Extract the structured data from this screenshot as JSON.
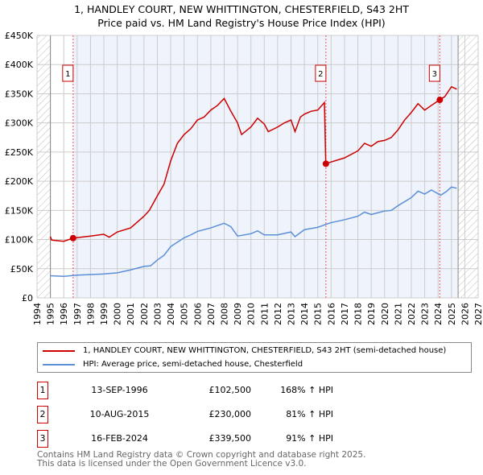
{
  "title": "1, HANDLEY COURT, NEW WHITTINGTON, CHESTERFIELD, S43 2HT",
  "subtitle": "Price paid vs. HM Land Registry's House Price Index (HPI)",
  "colors": {
    "property": "#cc0000",
    "hpi": "#5b8fd6",
    "shade": "#eef3fc"
  },
  "chart_data": {
    "type": "line",
    "xlim": [
      1994,
      2027
    ],
    "ylim": [
      0,
      450000
    ],
    "y_ticks": [
      0,
      50000,
      100000,
      150000,
      200000,
      250000,
      300000,
      350000,
      400000,
      450000
    ],
    "y_tick_labels": [
      "£0",
      "£50K",
      "£100K",
      "£150K",
      "£200K",
      "£250K",
      "£300K",
      "£350K",
      "£400K",
      "£450K"
    ],
    "x_ticks": [
      1994,
      1995,
      1996,
      1997,
      1998,
      1999,
      2000,
      2001,
      2002,
      2003,
      2004,
      2005,
      2006,
      2007,
      2008,
      2009,
      2010,
      2011,
      2012,
      2013,
      2014,
      2015,
      2016,
      2017,
      2018,
      2019,
      2020,
      2021,
      2022,
      2023,
      2024,
      2025,
      2026,
      2027
    ],
    "data_range": [
      1995,
      2025.5
    ],
    "series": [
      {
        "name": "1, HANDLEY COURT, NEW WHITTINGTON, CHESTERFIELD, S43 2HT (semi-detached house)",
        "color": "#cc0000",
        "x": [
          1995,
          1995.1,
          1996,
          1996.7,
          1998,
          1999,
          1999.4,
          2000,
          2001,
          2001.4,
          2002,
          2002.4,
          2003,
          2003.5,
          2004,
          2004.5,
          2005,
          2005.5,
          2006,
          2006.5,
          2007,
          2007.5,
          2008,
          2008.5,
          2009,
          2009.3,
          2010,
          2010.5,
          2011,
          2011.3,
          2012,
          2012.5,
          2013,
          2013.3,
          2013.7,
          2014,
          2014.5,
          2015,
          2015.5,
          2015.6,
          2016,
          2017,
          2018,
          2018.5,
          2019,
          2019.5,
          2020,
          2020.5,
          2021,
          2021.5,
          2022,
          2022.5,
          2023,
          2023.5,
          2024.12,
          2024.5,
          2025,
          2025.4
        ],
        "y": [
          105000,
          99000,
          97000,
          102500,
          106000,
          109000,
          104000,
          113000,
          120000,
          128000,
          140000,
          150000,
          175000,
          195000,
          235000,
          265000,
          280000,
          290000,
          305000,
          310000,
          322000,
          330000,
          342000,
          320000,
          300000,
          280000,
          293000,
          308000,
          298000,
          285000,
          293000,
          300000,
          305000,
          285000,
          310000,
          315000,
          320000,
          322000,
          335000,
          230000,
          233000,
          240000,
          252000,
          265000,
          260000,
          268000,
          270000,
          275000,
          288000,
          305000,
          318000,
          333000,
          322000,
          330000,
          339500,
          345000,
          362000,
          358000
        ]
      },
      {
        "name": "HPI: Average price, semi-detached house, Chesterfield",
        "color": "#5b8fd6",
        "x": [
          1995,
          1996,
          1997,
          1998,
          1999,
          2000,
          2001,
          2002,
          2002.5,
          2003,
          2003.5,
          2004,
          2005,
          2005.5,
          2006,
          2007,
          2008,
          2008.5,
          2009,
          2010,
          2010.5,
          2011,
          2012,
          2013,
          2013.3,
          2014,
          2015,
          2015.6,
          2016,
          2017,
          2018,
          2018.5,
          2019,
          2020,
          2020.5,
          2021,
          2022,
          2022.5,
          2023,
          2023.5,
          2024.2,
          2024.6,
          2025,
          2025.4
        ],
        "y": [
          38000,
          37000,
          39000,
          40000,
          41000,
          43000,
          48000,
          54000,
          55000,
          65000,
          73000,
          88000,
          103000,
          108000,
          114000,
          120000,
          128000,
          122000,
          106000,
          110000,
          115000,
          108000,
          108000,
          113000,
          105000,
          117000,
          121000,
          126000,
          129000,
          134000,
          140000,
          147000,
          143000,
          149000,
          150000,
          158000,
          172000,
          183000,
          178000,
          185000,
          176000,
          182000,
          190000,
          188000
        ]
      }
    ],
    "sales": [
      {
        "label": "1",
        "x": 1996.7,
        "y": 102500,
        "date": "13-SEP-1996",
        "price": "£102,500",
        "hpi": "168% ↑ HPI"
      },
      {
        "label": "2",
        "x": 2015.61,
        "y": 230000,
        "date": "10-AUG-2015",
        "price": "£230,000",
        "hpi": "81% ↑ HPI"
      },
      {
        "label": "3",
        "x": 2024.13,
        "y": 339500,
        "date": "16-FEB-2024",
        "price": "£339,500",
        "hpi": "91% ↑ HPI"
      }
    ]
  },
  "legend": {
    "property": "1, HANDLEY COURT, NEW WHITTINGTON, CHESTERFIELD, S43 2HT (semi-detached house)",
    "hpi": "HPI: Average price, semi-detached house, Chesterfield"
  },
  "footer": [
    "Contains HM Land Registry data © Crown copyright and database right 2025.",
    "This data is licensed under the Open Government Licence v3.0."
  ]
}
